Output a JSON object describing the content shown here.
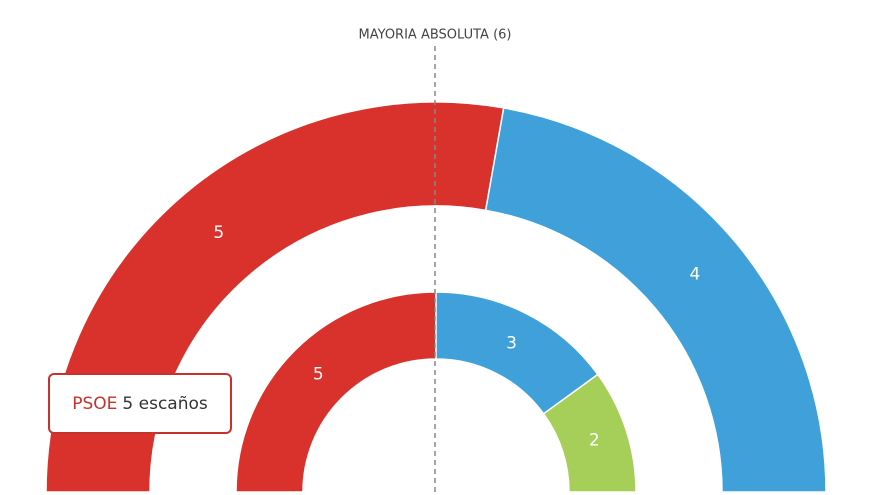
{
  "chart_data": {
    "type": "semicircle",
    "annotation": "MAYORIA ABSOLUTA (6)",
    "rings": [
      {
        "values": [
          5,
          4
        ],
        "colors": [
          "#d9312b",
          "#3fa0da"
        ]
      },
      {
        "values": [
          5,
          3,
          2
        ],
        "colors": [
          "#d9312b",
          "#3fa0da",
          "#a5cf58"
        ]
      }
    ],
    "tooltip": {
      "label": "PSOE",
      "text": "5 escaños"
    }
  }
}
